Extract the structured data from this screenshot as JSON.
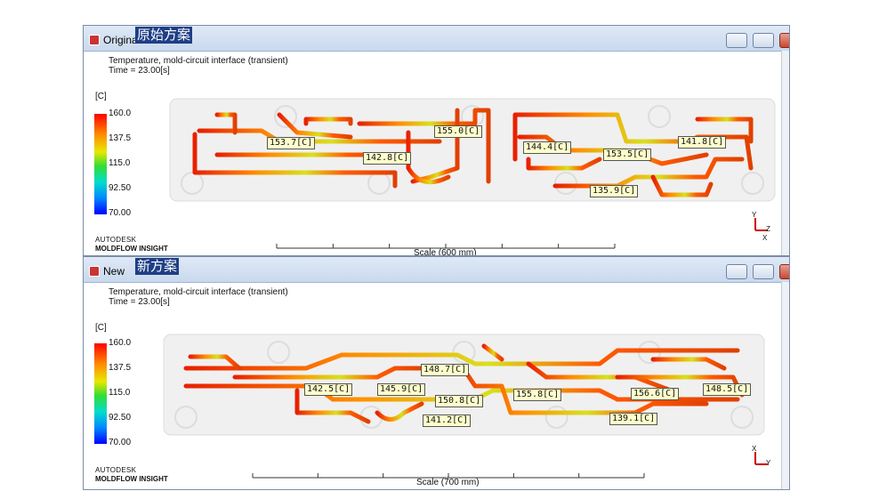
{
  "windows": [
    {
      "title": "Original",
      "caption": "原始方案",
      "plot_title": "Temperature, mold-circuit interface (transient)",
      "time": "Time = 23.00[s]",
      "unit": "[C]",
      "legend": [
        "160.0",
        "137.5",
        "115.0",
        "92.50",
        "70.00"
      ],
      "brand": "AUTODESK",
      "product": "MOLDFLOW INSIGHT",
      "scale": "Scale (600 mm)",
      "probes": [
        "153.7[C]",
        "155.0[C]",
        "142.8[C]",
        "144.4[C]",
        "153.5[C]",
        "141.8[C]",
        "135.9[C]"
      ],
      "axes": [
        "Y",
        "Z",
        "X"
      ]
    },
    {
      "title": "New",
      "caption": "新方案",
      "plot_title": "Temperature, mold-circuit interface (transient)",
      "time": "Time = 23.00[s]",
      "unit": "[C]",
      "legend": [
        "160.0",
        "137.5",
        "115.0",
        "92.50",
        "70.00"
      ],
      "brand": "AUTODESK",
      "product": "MOLDFLOW INSIGHT",
      "scale": "Scale (700 mm)",
      "probes": [
        "148.7[C]",
        "142.5[C]",
        "145.9[C]",
        "150.8[C]",
        "141.2[C]",
        "155.8[C]",
        "156.6[C]",
        "148.5[C]",
        "139.1[C]"
      ],
      "axes": [
        "X",
        "Y"
      ]
    }
  ]
}
